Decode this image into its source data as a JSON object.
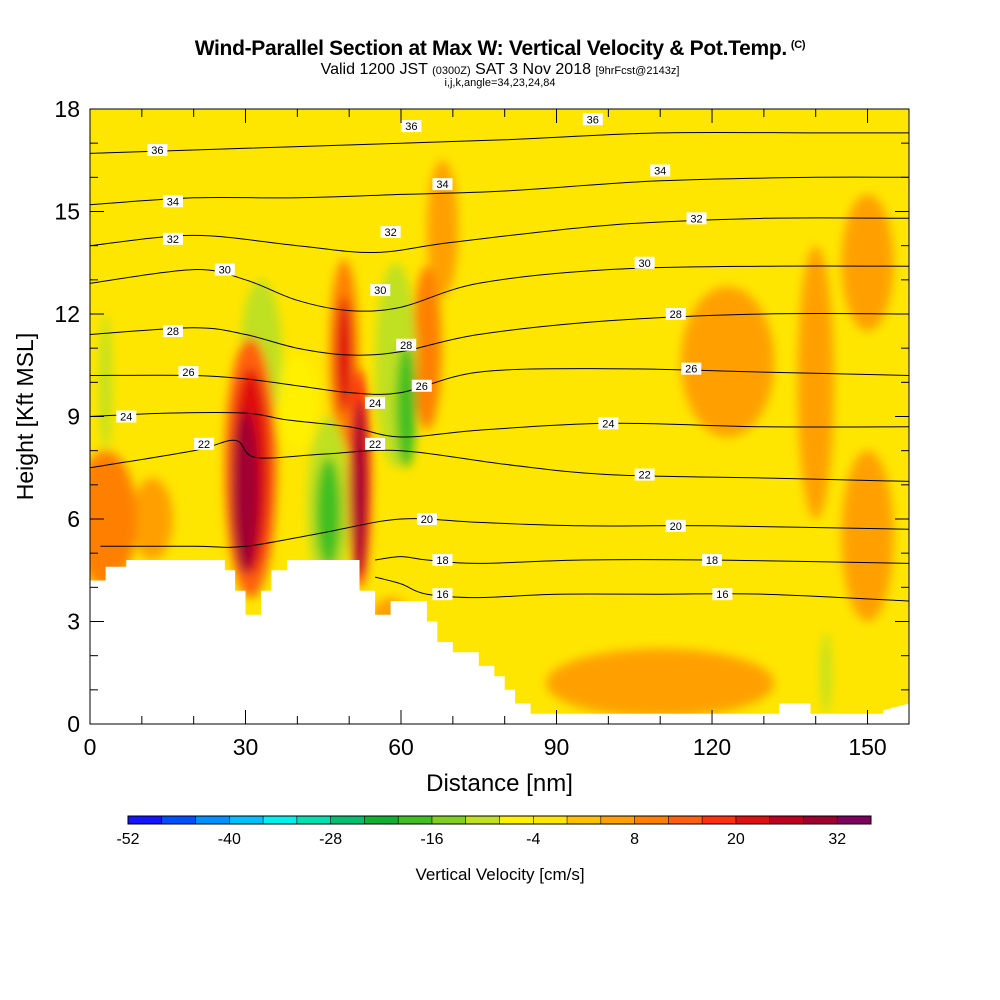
{
  "header": {
    "title": "Wind-Parallel Section at Max W: Vertical Velocity & Pot.Temp.",
    "title_units": "(C)",
    "valid_prefix": "Valid 1200 JST",
    "valid_utc": "(0300Z)",
    "valid_date": "SAT 3 Nov 2018",
    "forecast": "[9hrFcst@2143z]",
    "params": "i,j,k,angle=34,23,24,84"
  },
  "chart_data": {
    "type": "heatmap",
    "xlabel": "Distance [nm]",
    "ylabel": "Height [Kft MSL]",
    "xlim": [
      0,
      158
    ],
    "ylim": [
      0,
      18
    ],
    "x_ticks": [
      0,
      30,
      60,
      90,
      120,
      150
    ],
    "y_ticks": [
      0,
      3,
      6,
      9,
      12,
      15,
      18
    ],
    "background_color": "#ffe600",
    "colorbar": {
      "label": "Vertical Velocity [cm/s]",
      "min": -52,
      "max": 36,
      "step": 4,
      "tick_labels": [
        "-52",
        "-40",
        "-28",
        "-16",
        "-4",
        "8",
        "20",
        "32"
      ],
      "colors": [
        "#1414ff",
        "#0050ff",
        "#0090ff",
        "#00c0ff",
        "#00f0f0",
        "#00e0b0",
        "#00c070",
        "#10b030",
        "#40c020",
        "#80d020",
        "#c0e020",
        "#fff000",
        "#ffe600",
        "#ffc000",
        "#ffa000",
        "#ff8000",
        "#ff6010",
        "#ff3010",
        "#e01010",
        "#c00020",
        "#a00030",
        "#800060"
      ]
    },
    "terrain_profile": [
      [
        0,
        4.2
      ],
      [
        3,
        4.2
      ],
      [
        3,
        4.6
      ],
      [
        7,
        4.6
      ],
      [
        7,
        4.8
      ],
      [
        26,
        4.8
      ],
      [
        26,
        4.5
      ],
      [
        28,
        4.5
      ],
      [
        28,
        3.9
      ],
      [
        30,
        3.9
      ],
      [
        30,
        3.2
      ],
      [
        33,
        3.2
      ],
      [
        33,
        3.9
      ],
      [
        35,
        3.9
      ],
      [
        35,
        4.5
      ],
      [
        38,
        4.5
      ],
      [
        38,
        4.8
      ],
      [
        52,
        4.8
      ],
      [
        52,
        3.9
      ],
      [
        55,
        3.9
      ],
      [
        55,
        3.2
      ],
      [
        58,
        3.2
      ],
      [
        58,
        3.6
      ],
      [
        65,
        3.6
      ],
      [
        65,
        3.0
      ],
      [
        67,
        3.0
      ],
      [
        67,
        2.4
      ],
      [
        70,
        2.4
      ],
      [
        70,
        2.1
      ],
      [
        75,
        2.1
      ],
      [
        75,
        1.7
      ],
      [
        78,
        1.7
      ],
      [
        78,
        1.4
      ],
      [
        80,
        1.4
      ],
      [
        80,
        1.0
      ],
      [
        82,
        1.0
      ],
      [
        82,
        0.6
      ],
      [
        85,
        0.6
      ],
      [
        85,
        0.3
      ],
      [
        133,
        0.3
      ],
      [
        133,
        0.6
      ],
      [
        139,
        0.6
      ],
      [
        139,
        0.3
      ],
      [
        153,
        0.3
      ],
      [
        153,
        0.4
      ],
      [
        158,
        0.6
      ]
    ],
    "velocity_features": [
      {
        "x": 30,
        "y": 6.8,
        "rx": 2.6,
        "ry": 2.4,
        "value": 30
      },
      {
        "x": 31,
        "y": 7.4,
        "rx": 3.6,
        "ry": 3.0,
        "value": 22
      },
      {
        "x": 31,
        "y": 7.5,
        "rx": 5.0,
        "ry": 3.8,
        "value": 12
      },
      {
        "x": 52,
        "y": 6.9,
        "rx": 1.4,
        "ry": 2.6,
        "value": 30
      },
      {
        "x": 52,
        "y": 7.2,
        "rx": 2.2,
        "ry": 3.2,
        "value": 18
      },
      {
        "x": 49,
        "y": 10.8,
        "rx": 1.6,
        "ry": 1.7,
        "value": 22
      },
      {
        "x": 49,
        "y": 10.8,
        "rx": 2.8,
        "ry": 2.8,
        "value": 10
      },
      {
        "x": 65,
        "y": 11.0,
        "rx": 2.8,
        "ry": 2.4,
        "value": 10
      },
      {
        "x": 3,
        "y": 6.0,
        "rx": 6.0,
        "ry": 2.0,
        "value": 8
      },
      {
        "x": 46,
        "y": 6.2,
        "rx": 2.4,
        "ry": 1.6,
        "value": -18
      },
      {
        "x": 46,
        "y": 6.4,
        "rx": 4.2,
        "ry": 2.6,
        "value": -10
      },
      {
        "x": 61,
        "y": 9.3,
        "rx": 2.0,
        "ry": 1.8,
        "value": -18
      },
      {
        "x": 59,
        "y": 10.5,
        "rx": 4.0,
        "ry": 3.0,
        "value": -10
      },
      {
        "x": 33,
        "y": 10.8,
        "rx": 4.0,
        "ry": 2.2,
        "value": -10
      },
      {
        "x": 40,
        "y": 9.4,
        "rx": 4.0,
        "ry": 1.4,
        "value": -8
      },
      {
        "x": 3,
        "y": 10.0,
        "rx": 1.2,
        "ry": 2.0,
        "value": -10
      },
      {
        "x": 142,
        "y": 1.5,
        "rx": 1.0,
        "ry": 1.2,
        "value": -12
      },
      {
        "x": 123,
        "y": 10.6,
        "rx": 9.0,
        "ry": 2.2,
        "value": 6
      },
      {
        "x": 58,
        "y": 2.5,
        "rx": 5.0,
        "ry": 1.2,
        "value": 6
      },
      {
        "x": 110,
        "y": 1.2,
        "rx": 22.0,
        "ry": 1.0,
        "value": 5
      },
      {
        "x": 140,
        "y": 10.0,
        "rx": 3.5,
        "ry": 4.0,
        "value": 5
      },
      {
        "x": 150,
        "y": 13.5,
        "rx": 5.0,
        "ry": 2.0,
        "value": 5
      },
      {
        "x": 68,
        "y": 14.5,
        "rx": 3.0,
        "ry": 2.0,
        "value": 5
      },
      {
        "x": 150,
        "y": 5.5,
        "rx": 5.0,
        "ry": 2.5,
        "value": 5
      },
      {
        "x": 12,
        "y": 6.0,
        "rx": 4.0,
        "ry": 1.2,
        "value": 6
      }
    ],
    "isentropes": [
      {
        "label": "16",
        "points": [
          [
            55,
            4.3
          ],
          [
            60,
            4.1
          ],
          [
            65,
            3.8
          ],
          [
            75,
            3.7
          ],
          [
            90,
            3.8
          ],
          [
            110,
            3.8
          ],
          [
            130,
            3.8
          ],
          [
            158,
            3.6
          ]
        ],
        "label_at": [
          [
            68,
            3.8
          ],
          [
            122,
            3.8
          ]
        ]
      },
      {
        "label": "18",
        "points": [
          [
            55,
            4.8
          ],
          [
            60,
            4.9
          ],
          [
            65,
            4.8
          ],
          [
            75,
            4.7
          ],
          [
            95,
            4.8
          ],
          [
            120,
            4.8
          ],
          [
            158,
            4.7
          ]
        ],
        "label_at": [
          [
            68,
            4.8
          ],
          [
            120,
            4.8
          ]
        ]
      },
      {
        "label": "20",
        "points": [
          [
            2,
            5.2
          ],
          [
            20,
            5.2
          ],
          [
            30,
            5.2
          ],
          [
            45,
            5.6
          ],
          [
            60,
            6.0
          ],
          [
            75,
            5.9
          ],
          [
            95,
            5.8
          ],
          [
            120,
            5.8
          ],
          [
            158,
            5.7
          ]
        ],
        "label_at": [
          [
            65,
            6.0
          ],
          [
            113,
            5.8
          ]
        ]
      },
      {
        "label": "22",
        "points": [
          [
            0,
            7.5
          ],
          [
            20,
            8.0
          ],
          [
            28,
            8.3
          ],
          [
            32,
            7.8
          ],
          [
            45,
            7.9
          ],
          [
            60,
            8.0
          ],
          [
            80,
            7.6
          ],
          [
            100,
            7.3
          ],
          [
            130,
            7.2
          ],
          [
            158,
            7.1
          ]
        ],
        "label_at": [
          [
            22,
            8.2
          ],
          [
            55,
            8.2
          ],
          [
            107,
            7.3
          ]
        ]
      },
      {
        "label": "24",
        "points": [
          [
            0,
            9.0
          ],
          [
            15,
            9.1
          ],
          [
            30,
            9.1
          ],
          [
            38,
            8.9
          ],
          [
            50,
            8.7
          ],
          [
            60,
            8.4
          ],
          [
            75,
            8.6
          ],
          [
            100,
            8.8
          ],
          [
            130,
            8.7
          ],
          [
            158,
            8.7
          ]
        ],
        "label_at": [
          [
            7,
            9.0
          ],
          [
            55,
            9.4
          ],
          [
            100,
            8.8
          ]
        ]
      },
      {
        "label": "26",
        "points": [
          [
            0,
            10.2
          ],
          [
            20,
            10.2
          ],
          [
            30,
            10.1
          ],
          [
            40,
            9.9
          ],
          [
            50,
            9.7
          ],
          [
            60,
            9.7
          ],
          [
            75,
            10.3
          ],
          [
            100,
            10.4
          ],
          [
            130,
            10.3
          ],
          [
            158,
            10.2
          ]
        ],
        "label_at": [
          [
            19,
            10.3
          ],
          [
            64,
            9.9
          ],
          [
            116,
            10.4
          ]
        ]
      },
      {
        "label": "28",
        "points": [
          [
            0,
            11.4
          ],
          [
            20,
            11.6
          ],
          [
            30,
            11.4
          ],
          [
            40,
            11.0
          ],
          [
            50,
            10.8
          ],
          [
            60,
            10.9
          ],
          [
            75,
            11.4
          ],
          [
            100,
            11.8
          ],
          [
            130,
            12.0
          ],
          [
            158,
            12.0
          ]
        ],
        "label_at": [
          [
            16,
            11.5
          ],
          [
            61,
            11.1
          ],
          [
            113,
            12.0
          ]
        ]
      },
      {
        "label": "30",
        "points": [
          [
            0,
            12.9
          ],
          [
            20,
            13.3
          ],
          [
            30,
            13.0
          ],
          [
            40,
            12.4
          ],
          [
            50,
            12.1
          ],
          [
            60,
            12.2
          ],
          [
            75,
            12.9
          ],
          [
            100,
            13.3
          ],
          [
            130,
            13.4
          ],
          [
            158,
            13.4
          ]
        ],
        "label_at": [
          [
            26,
            13.3
          ],
          [
            56,
            12.7
          ],
          [
            107,
            13.5
          ]
        ]
      },
      {
        "label": "32",
        "points": [
          [
            0,
            14.0
          ],
          [
            20,
            14.3
          ],
          [
            40,
            14.0
          ],
          [
            55,
            13.8
          ],
          [
            70,
            14.1
          ],
          [
            100,
            14.6
          ],
          [
            130,
            14.8
          ],
          [
            158,
            14.8
          ]
        ],
        "label_at": [
          [
            16,
            14.2
          ],
          [
            58,
            14.4
          ],
          [
            117,
            14.8
          ]
        ]
      },
      {
        "label": "34",
        "points": [
          [
            0,
            15.2
          ],
          [
            20,
            15.4
          ],
          [
            40,
            15.4
          ],
          [
            60,
            15.5
          ],
          [
            80,
            15.6
          ],
          [
            110,
            15.9
          ],
          [
            140,
            16.0
          ],
          [
            158,
            16.0
          ]
        ],
        "label_at": [
          [
            16,
            15.3
          ],
          [
            68,
            15.8
          ],
          [
            110,
            16.2
          ]
        ]
      },
      {
        "label": "36",
        "points": [
          [
            0,
            16.7
          ],
          [
            20,
            16.8
          ],
          [
            40,
            16.9
          ],
          [
            60,
            17.0
          ],
          [
            80,
            17.1
          ],
          [
            110,
            17.3
          ],
          [
            140,
            17.3
          ],
          [
            158,
            17.3
          ]
        ],
        "label_at": [
          [
            13,
            16.8
          ],
          [
            62,
            17.5
          ],
          [
            97,
            17.7
          ]
        ]
      }
    ]
  }
}
